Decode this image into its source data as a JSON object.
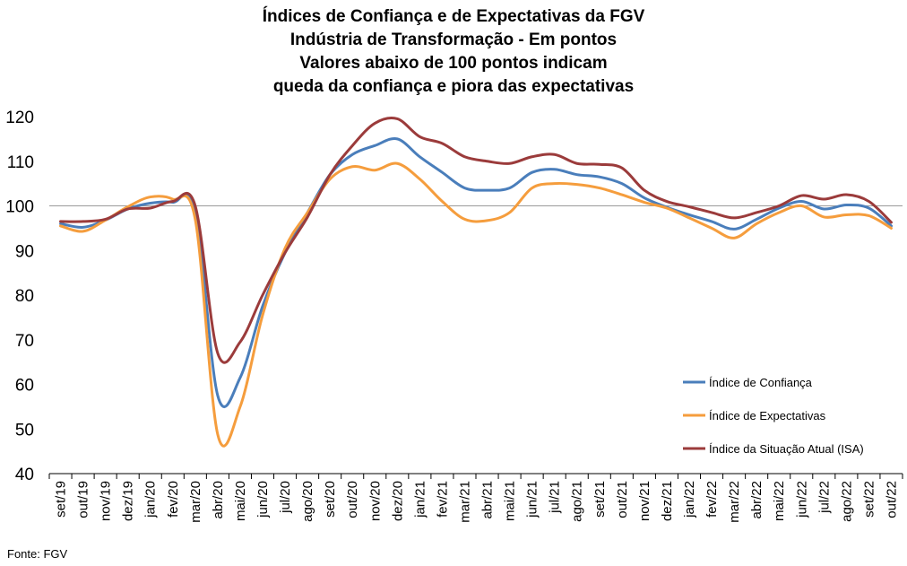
{
  "chart_data": {
    "type": "line",
    "title_lines": [
      "Índices de Confiança e de Expectativas da FGV",
      "Indústria de Transformação - Em pontos",
      "Valores abaixo de 100 pontos indicam",
      "queda da confiança e piora das expectativas"
    ],
    "xlabel": "",
    "ylabel": "",
    "ylim": [
      40,
      120
    ],
    "yticks": [
      40,
      50,
      60,
      70,
      80,
      90,
      100,
      110,
      120
    ],
    "reference_line": 100,
    "grid": false,
    "legend_position": "right",
    "categories": [
      "set/19",
      "out/19",
      "nov/19",
      "dez/19",
      "jan/20",
      "fev/20",
      "mar/20",
      "abr/20",
      "mai/20",
      "jun/20",
      "jul/20",
      "ago/20",
      "set/20",
      "out/20",
      "nov/20",
      "dez/20",
      "jan/21",
      "fev/21",
      "mar/21",
      "abr/21",
      "mai/21",
      "jun/21",
      "jul/21",
      "ago/21",
      "set/21",
      "out/21",
      "nov/21",
      "dez/21",
      "jan/22",
      "fev/22",
      "mar/22",
      "abr/22",
      "mai/22",
      "jun/22",
      "jul/22",
      "ago/22",
      "set/22",
      "out/22"
    ],
    "series": [
      {
        "name": "Índice de Confiança",
        "color": "#4a7ebb",
        "values": [
          96.0,
          95.2,
          96.8,
          99.3,
          100.6,
          100.8,
          99.0,
          57.5,
          61.5,
          77.5,
          89.5,
          98.5,
          107.0,
          111.5,
          113.5,
          115.0,
          111.0,
          107.5,
          104.0,
          103.5,
          104.0,
          107.5,
          108.2,
          107.0,
          106.5,
          105.0,
          101.8,
          99.7,
          98.0,
          96.5,
          94.8,
          97.0,
          99.5,
          101.0,
          99.3,
          100.2,
          99.5,
          95.5
        ]
      },
      {
        "name": "Índice de Expectativas",
        "color": "#f59d3d",
        "values": [
          95.5,
          94.3,
          96.8,
          99.8,
          102.0,
          101.5,
          97.0,
          48.8,
          55.0,
          75.5,
          90.5,
          98.5,
          106.0,
          108.8,
          108.0,
          109.5,
          106.0,
          101.0,
          97.0,
          96.7,
          98.5,
          104.0,
          105.0,
          104.8,
          104.0,
          102.5,
          100.8,
          99.5,
          97.3,
          95.0,
          92.8,
          96.0,
          98.5,
          100.0,
          97.5,
          98.0,
          97.8,
          95.0
        ]
      },
      {
        "name": "Índice da Situação Atual (ISA)",
        "color": "#9b3b3b",
        "values": [
          96.5,
          96.5,
          97.0,
          99.3,
          99.5,
          101.0,
          100.0,
          67.0,
          69.5,
          80.0,
          89.5,
          97.5,
          107.0,
          113.5,
          118.5,
          119.5,
          115.5,
          114.0,
          111.0,
          110.0,
          109.5,
          111.0,
          111.5,
          109.5,
          109.3,
          108.5,
          103.5,
          101.0,
          99.8,
          98.5,
          97.3,
          98.5,
          100.0,
          102.3,
          101.5,
          102.5,
          101.0,
          96.3
        ]
      }
    ],
    "source_note": "Fonte: FGV"
  }
}
